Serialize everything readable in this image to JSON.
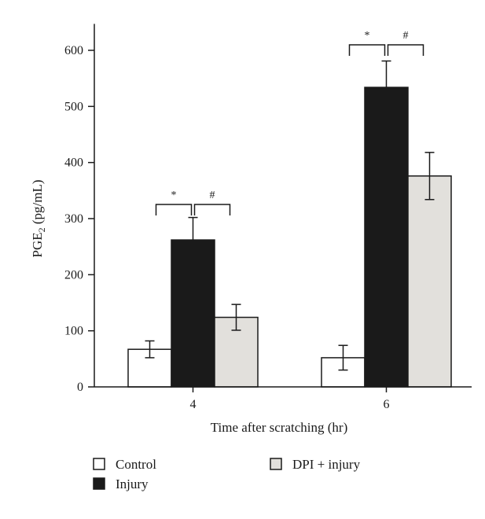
{
  "chart_data": {
    "type": "bar",
    "title": "",
    "xlabel": "Time after scratching (hr)",
    "ylabel": "PGE",
    "ylabel_subscript": "2",
    "ylabel_unit": " (pg/mL)",
    "ylim": [
      0,
      650
    ],
    "yticks": [
      0,
      100,
      200,
      300,
      400,
      500,
      600
    ],
    "categories": [
      "4",
      "6"
    ],
    "series": [
      {
        "name": "Control",
        "values": [
          67,
          52
        ],
        "errors": [
          15,
          22
        ],
        "color": "#ffffff"
      },
      {
        "name": "Injury",
        "values": [
          262,
          534
        ],
        "errors": [
          40,
          47
        ],
        "color": "#1a1a1a"
      },
      {
        "name": "DPI + injury",
        "values": [
          124,
          376
        ],
        "errors": [
          23,
          42
        ],
        "color": "#e2e0dc"
      }
    ],
    "significance": [
      {
        "category": 0,
        "from_series": 0,
        "to_series": 1,
        "label": "*"
      },
      {
        "category": 0,
        "from_series": 1,
        "to_series": 2,
        "label": "#"
      },
      {
        "category": 1,
        "from_series": 0,
        "to_series": 1,
        "label": "*"
      },
      {
        "category": 1,
        "from_series": 1,
        "to_series": 2,
        "label": "#"
      }
    ],
    "legend": [
      "Control",
      "Injury",
      "DPI + injury"
    ],
    "legend_position": "bottom",
    "grid": false
  }
}
